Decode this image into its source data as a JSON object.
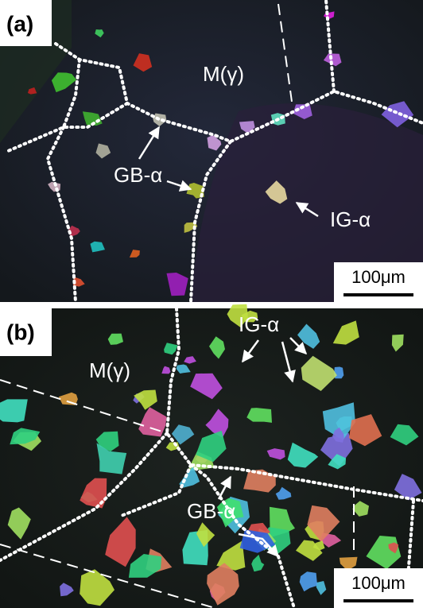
{
  "panels": [
    {
      "label": "(a)",
      "matrix_label": "M(γ)",
      "gb_label": "GB-α",
      "ig_label": "IG-α",
      "scale_bar": "100μm"
    },
    {
      "label": "(b)",
      "matrix_label": "M(γ)",
      "gb_label": "GB-α",
      "ig_label": "IG-α",
      "scale_bar": "100μm"
    }
  ]
}
